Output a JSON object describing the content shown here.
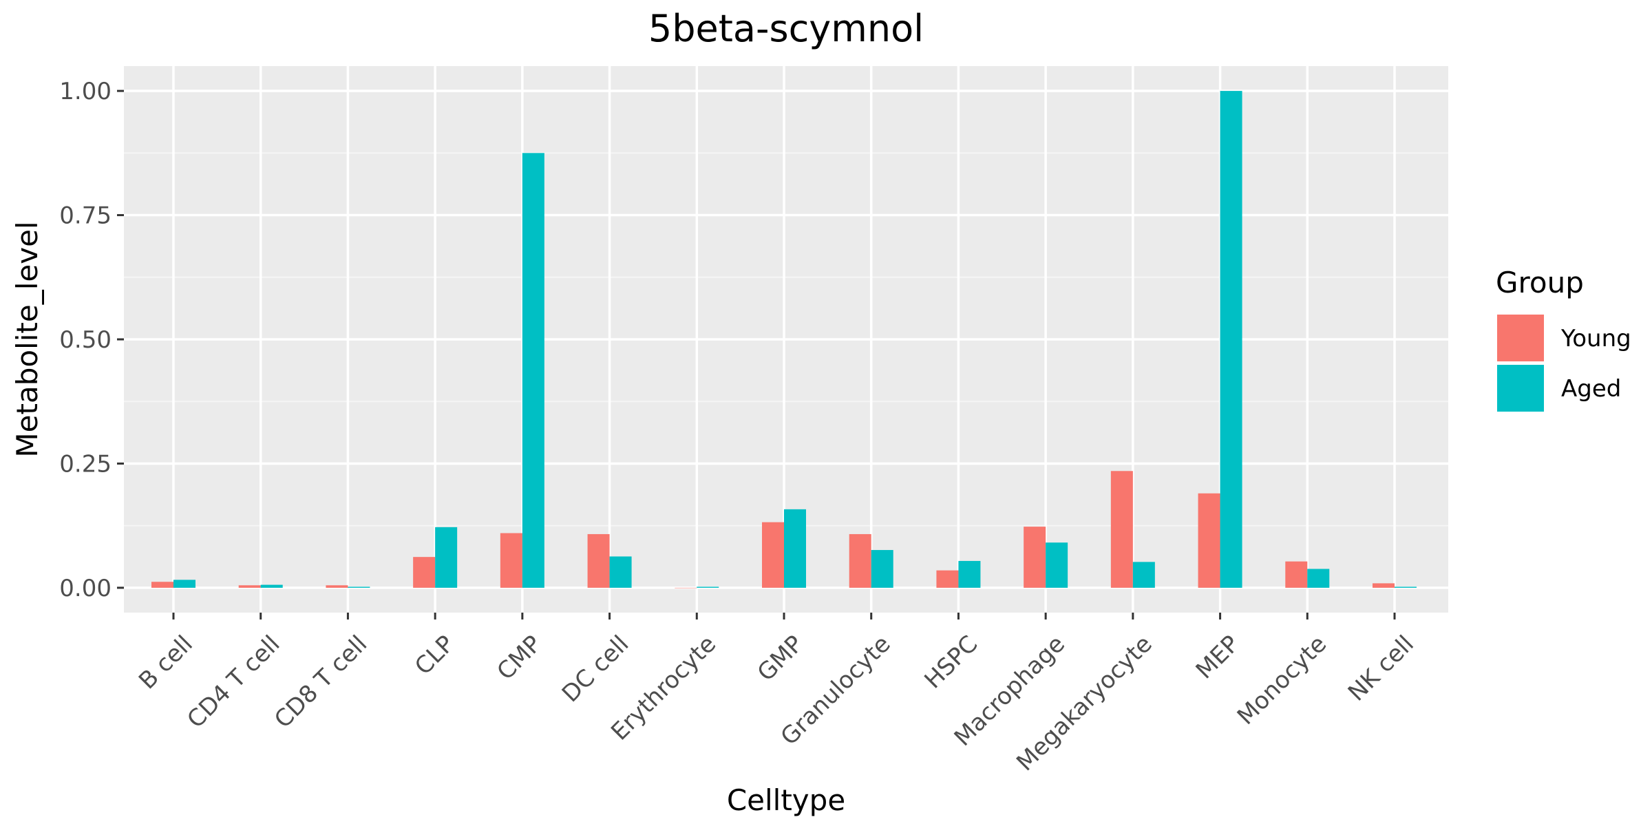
{
  "chart_data": {
    "type": "bar",
    "title": "5beta-scymnol",
    "xlabel": "Celltype",
    "ylabel": "Metabolite_level",
    "ylim": [
      -0.05,
      1.05
    ],
    "y_ticks": [
      0.0,
      0.25,
      0.5,
      0.75,
      1.0
    ],
    "y_tick_labels": [
      "0.00",
      "0.25",
      "0.50",
      "0.75",
      "1.00"
    ],
    "grid": true,
    "legend_position": "right",
    "legend_title": "Group",
    "categories": [
      "B cell",
      "CD4 T cell",
      "CD8 T cell",
      "CLP",
      "CMP",
      "DC cell",
      "Erythrocyte",
      "GMP",
      "Granulocyte",
      "HSPC",
      "Macrophage",
      "Megakaryocyte",
      "MEP",
      "Monocyte",
      "NK cell"
    ],
    "series": [
      {
        "name": "Young",
        "color": "#F8766D",
        "values": [
          0.012,
          0.005,
          0.005,
          0.062,
          0.11,
          0.108,
          0.0,
          0.132,
          0.108,
          0.035,
          0.123,
          0.235,
          0.19,
          0.053,
          0.009
        ]
      },
      {
        "name": "Aged",
        "color": "#00BFC4",
        "values": [
          0.016,
          0.006,
          0.002,
          0.122,
          0.875,
          0.063,
          0.002,
          0.158,
          0.076,
          0.054,
          0.091,
          0.052,
          1.0,
          0.038,
          0.002
        ]
      }
    ]
  },
  "colors": {
    "panel_background": "#EBEBEB",
    "grid_major": "#FFFFFF",
    "grid_minor": "#F5F5F5"
  }
}
